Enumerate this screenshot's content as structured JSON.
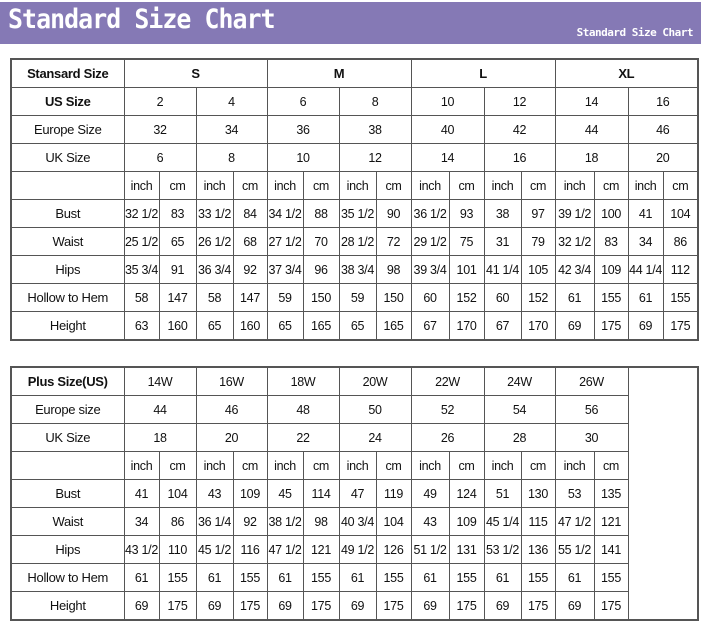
{
  "header": {
    "title": "Standard Size Chart",
    "subtitle": "Standard Size Chart",
    "color": "#8579b5"
  },
  "standard": {
    "corner": "Stansard Size",
    "groups": [
      "S",
      "M",
      "L",
      "XL"
    ],
    "us_label": "US Size",
    "us": [
      "2",
      "4",
      "6",
      "8",
      "10",
      "12",
      "14",
      "16"
    ],
    "europe_label": "Europe Size",
    "europe": [
      "32",
      "34",
      "36",
      "38",
      "40",
      "42",
      "44",
      "46"
    ],
    "uk_label": "UK Size",
    "uk": [
      "6",
      "8",
      "10",
      "12",
      "14",
      "16",
      "18",
      "20"
    ],
    "units": [
      "inch",
      "cm"
    ],
    "rows": [
      {
        "label": "Bust",
        "values": [
          "32 1/2",
          "83",
          "33 1/2",
          "84",
          "34 1/2",
          "88",
          "35 1/2",
          "90",
          "36 1/2",
          "93",
          "38",
          "97",
          "39 1/2",
          "100",
          "41",
          "104"
        ]
      },
      {
        "label": "Waist",
        "values": [
          "25 1/2",
          "65",
          "26 1/2",
          "68",
          "27 1/2",
          "70",
          "28 1/2",
          "72",
          "29 1/2",
          "75",
          "31",
          "79",
          "32 1/2",
          "83",
          "34",
          "86"
        ]
      },
      {
        "label": "Hips",
        "values": [
          "35 3/4",
          "91",
          "36 3/4",
          "92",
          "37 3/4",
          "96",
          "38 3/4",
          "98",
          "39 3/4",
          "101",
          "41 1/4",
          "105",
          "42 3/4",
          "109",
          "44 1/4",
          "112"
        ]
      },
      {
        "label": "Hollow to Hem",
        "values": [
          "58",
          "147",
          "58",
          "147",
          "59",
          "150",
          "59",
          "150",
          "60",
          "152",
          "60",
          "152",
          "61",
          "155",
          "61",
          "155"
        ]
      },
      {
        "label": "Height",
        "values": [
          "63",
          "160",
          "65",
          "160",
          "65",
          "165",
          "65",
          "165",
          "67",
          "170",
          "67",
          "170",
          "69",
          "175",
          "69",
          "175"
        ]
      }
    ]
  },
  "plus": {
    "corner": "Plus Size(US)",
    "sizes": [
      "14W",
      "16W",
      "18W",
      "20W",
      "22W",
      "24W",
      "26W"
    ],
    "europe_label": "Europe size",
    "europe": [
      "44",
      "46",
      "48",
      "50",
      "52",
      "54",
      "56"
    ],
    "uk_label": "UK Size",
    "uk": [
      "18",
      "20",
      "22",
      "24",
      "26",
      "28",
      "30"
    ],
    "units": [
      "inch",
      "cm"
    ],
    "rows": [
      {
        "label": "Bust",
        "values": [
          "41",
          "104",
          "43",
          "109",
          "45",
          "114",
          "47",
          "119",
          "49",
          "124",
          "51",
          "130",
          "53",
          "135"
        ]
      },
      {
        "label": "Waist",
        "values": [
          "34",
          "86",
          "36 1/4",
          "92",
          "38 1/2",
          "98",
          "40 3/4",
          "104",
          "43",
          "109",
          "45 1/4",
          "115",
          "47 1/2",
          "121"
        ]
      },
      {
        "label": "Hips",
        "values": [
          "43 1/2",
          "110",
          "45 1/2",
          "116",
          "47 1/2",
          "121",
          "49 1/2",
          "126",
          "51 1/2",
          "131",
          "53 1/2",
          "136",
          "55 1/2",
          "141"
        ]
      },
      {
        "label": "Hollow to Hem",
        "values": [
          "61",
          "155",
          "61",
          "155",
          "61",
          "155",
          "61",
          "155",
          "61",
          "155",
          "61",
          "155",
          "61",
          "155"
        ]
      },
      {
        "label": "Height",
        "values": [
          "69",
          "175",
          "69",
          "175",
          "69",
          "175",
          "69",
          "175",
          "69",
          "175",
          "69",
          "175",
          "69",
          "175"
        ]
      }
    ]
  }
}
